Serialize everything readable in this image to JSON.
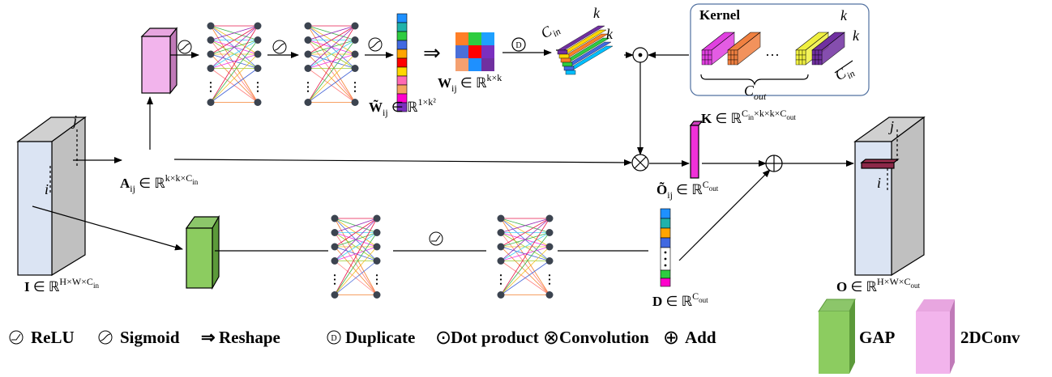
{
  "labels": {
    "input": [
      {
        "t": "I",
        "bold": true
      },
      {
        "t": " ∈ ℝ"
      },
      {
        "t": "H×W×C",
        "s": "sup"
      },
      {
        "t": "in",
        "s": "supsub"
      }
    ],
    "patch": [
      {
        "t": "A",
        "bold": true
      },
      {
        "t": "ij",
        "s": "sub"
      },
      {
        "t": " ∈ ℝ"
      },
      {
        "t": "k×k×C",
        "s": "sup"
      },
      {
        "t": "in",
        "s": "supsub"
      }
    ],
    "weight_vector": [
      {
        "t": "W̃",
        "bold": true
      },
      {
        "t": "ij",
        "s": "sub"
      },
      {
        "t": " ∈ ℝ"
      },
      {
        "t": "1×k²",
        "s": "sup"
      }
    ],
    "weight_matrix": [
      {
        "t": "W",
        "bold": true
      },
      {
        "t": "ij",
        "s": "sub"
      },
      {
        "t": " ∈ ℝ"
      },
      {
        "t": "k×k",
        "s": "sup"
      }
    ],
    "kernel_space": [
      {
        "t": "K",
        "bold": true
      },
      {
        "t": " ∈ ℝ"
      },
      {
        "t": "C",
        "s": "sup"
      },
      {
        "t": "in",
        "s": "supsub"
      },
      {
        "t": "×k×k×C",
        "s": "sup"
      },
      {
        "t": "out",
        "s": "supsub"
      }
    ],
    "patch_output": [
      {
        "t": "Õ",
        "bold": true
      },
      {
        "t": "ij",
        "s": "sub"
      },
      {
        "t": " ∈ ℝ"
      },
      {
        "t": "C",
        "s": "sup"
      },
      {
        "t": "out",
        "s": "supsub"
      }
    ],
    "output": [
      {
        "t": "O",
        "bold": true
      },
      {
        "t": " ∈ ℝ"
      },
      {
        "t": "H×W×C",
        "s": "sup"
      },
      {
        "t": "out",
        "s": "supsub"
      }
    ],
    "bias": [
      {
        "t": "D",
        "bold": true
      },
      {
        "t": " ∈ ℝ"
      },
      {
        "t": "C",
        "s": "sup"
      },
      {
        "t": "out",
        "s": "supsub"
      }
    ],
    "dup_cin": [
      {
        "t": "C"
      },
      {
        "t": "in",
        "s": "sub"
      }
    ],
    "kernel_cin": [
      {
        "t": "C"
      },
      {
        "t": "in",
        "s": "sub"
      }
    ],
    "kernel_cout": [
      {
        "t": "C"
      },
      {
        "t": "out",
        "s": "sub"
      }
    ]
  },
  "k": "k",
  "i": "i",
  "j": "j",
  "kernel_title": "Kernel",
  "ellipsis": "···",
  "legend": [
    {
      "text": "ReLU"
    },
    {
      "text": "Sigmoid"
    },
    {
      "symbol": "⇒",
      "text": "Reshape"
    },
    {
      "symbol": "D",
      "text": "Duplicate"
    },
    {
      "symbol": "⊙",
      "text": "Dot product"
    },
    {
      "symbol": "⊗",
      "text": "Convolution"
    },
    {
      "symbol": "⊕",
      "text": "Add"
    },
    {
      "text": "GAP"
    },
    {
      "text": "2DConv"
    }
  ]
}
